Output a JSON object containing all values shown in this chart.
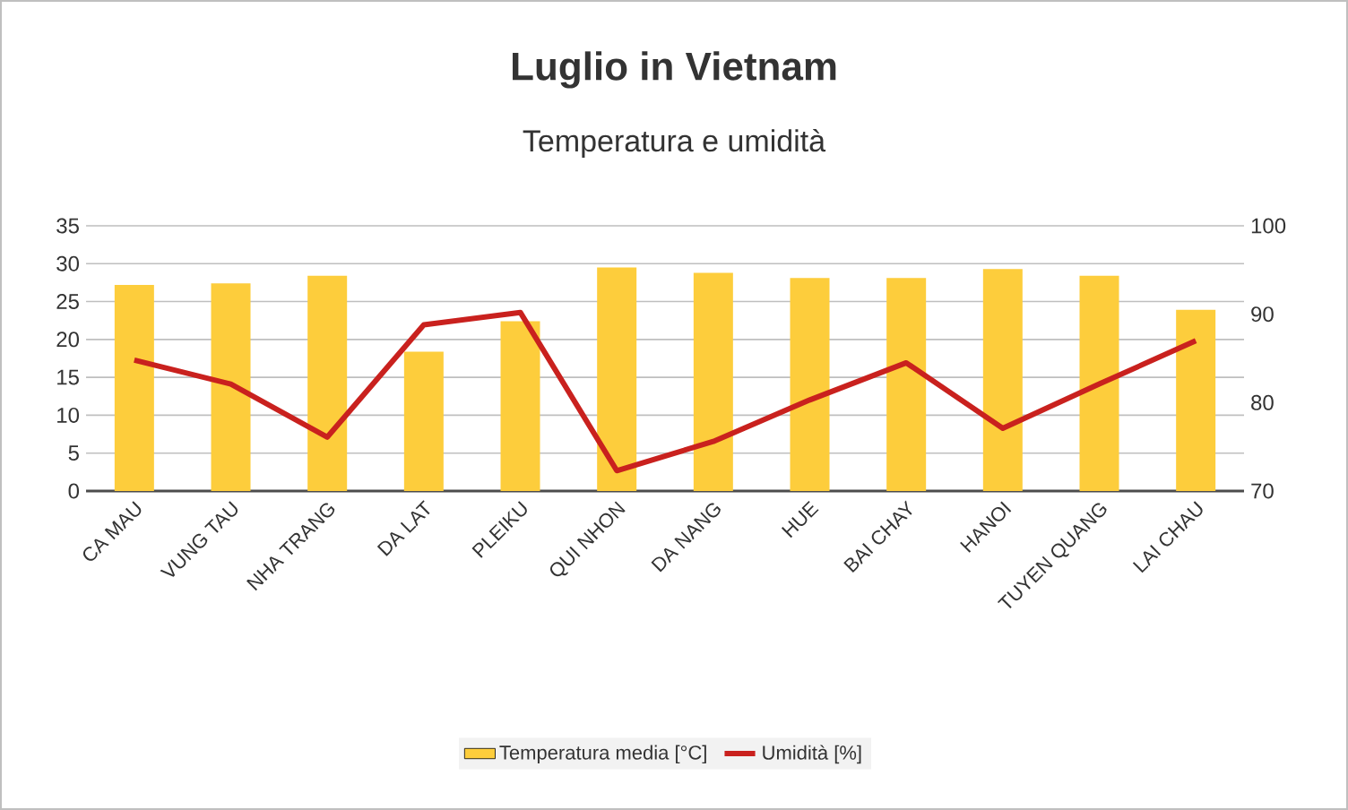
{
  "chart_data": {
    "type": "bar",
    "title": "Luglio in Vietnam",
    "subtitle": "Temperatura e umidità",
    "categories": [
      "CA MAU",
      "VUNG TAU",
      "NHA TRANG",
      "DA LAT",
      "PLEIKU",
      "QUI NHON",
      "DA NANG",
      "HUE",
      "BAI CHAY",
      "HANOI",
      "TUYEN QUANG",
      "LAI CHAU"
    ],
    "series": [
      {
        "name": "Temperatura media [°C]",
        "color": "#fdcd3c",
        "values": [
          27.2,
          27.4,
          28.4,
          18.4,
          22.4,
          29.5,
          28.8,
          28.1,
          28.1,
          29.3,
          28.4,
          23.9
        ]
      },
      {
        "name": "Umidità [%]",
        "type": "line",
        "axis": "y2",
        "color": "#c9211e",
        "values": [
          84.8,
          82.1,
          76.1,
          88.8,
          90.2,
          72.3,
          75.6,
          80.3,
          84.5,
          77.1,
          82.1,
          87.0
        ]
      }
    ],
    "ylim": [
      0,
      35
    ],
    "yticks": [
      0,
      5,
      10,
      15,
      20,
      25,
      30,
      35
    ],
    "y2lim": [
      70,
      100
    ],
    "y2ticks": [
      70,
      80,
      90,
      100
    ],
    "grid": "y",
    "legend": "bottom",
    "marker": "none",
    "line_style": "solid"
  }
}
